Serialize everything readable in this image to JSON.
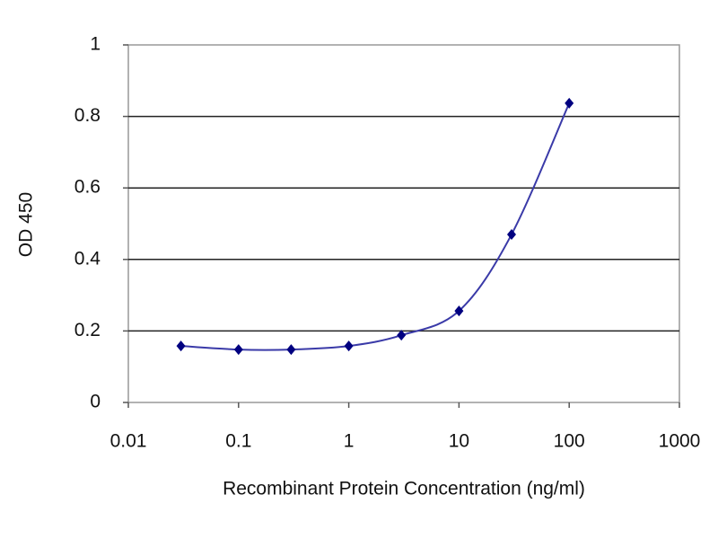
{
  "chart_data": {
    "type": "line",
    "x": [
      0.03,
      0.1,
      0.3,
      1,
      3,
      10,
      30,
      100
    ],
    "values": [
      0.158,
      0.148,
      0.148,
      0.158,
      0.188,
      0.256,
      0.47,
      0.837
    ],
    "color": "#000080",
    "line_color": "#3a3aa8",
    "x_label": "Recombinant Protein Concentration (ng/ml)",
    "y_label": "OD 450",
    "xlim": [
      0.01,
      1000
    ],
    "xticks": [
      0.01,
      0.1,
      1,
      10,
      100,
      1000
    ],
    "log_x": true,
    "ylim": [
      0,
      1
    ],
    "yticks": [
      0,
      0.2,
      0.4,
      0.6,
      0.8,
      1
    ],
    "grid": true
  }
}
